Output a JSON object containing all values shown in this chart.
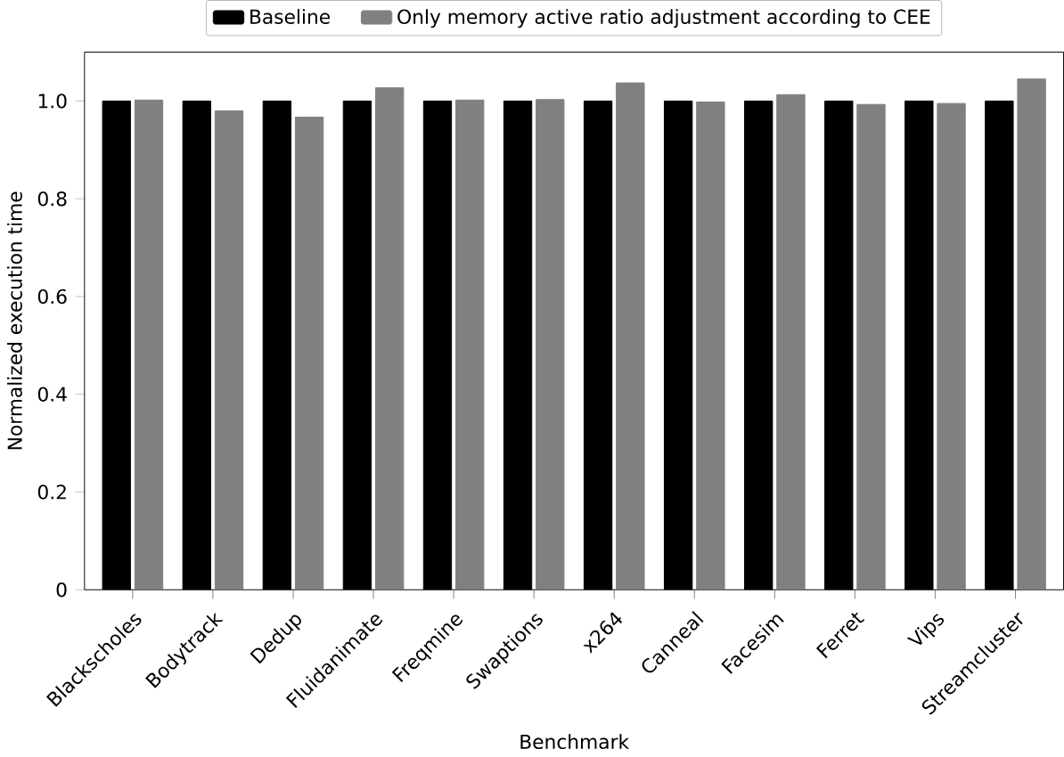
{
  "chart_data": {
    "type": "bar",
    "xlabel": "Benchmark",
    "ylabel": "Normalized execution time",
    "categories": [
      "Blackscholes",
      "Bodytrack",
      "Dedup",
      "Fluidanimate",
      "Freqmine",
      "Swaptions",
      "x264",
      "Canneal",
      "Facesim",
      "Ferret",
      "Vips",
      "Streamcluster"
    ],
    "series": [
      {
        "name": "Baseline",
        "color": "#000000",
        "values": [
          1,
          1,
          1,
          1,
          1,
          1,
          1,
          1,
          1,
          1,
          1,
          1
        ]
      },
      {
        "name": "Only memory active ratio adjustment according to CEE",
        "color": "#808080",
        "values": [
          1.002,
          0.98,
          0.967,
          1.027,
          1.002,
          1.003,
          1.037,
          0.998,
          1.013,
          0.993,
          0.995,
          1.045
        ]
      }
    ],
    "ylim": [
      0,
      1.1
    ],
    "yticks": [
      {
        "value": 0,
        "label": "0"
      },
      0.2,
      0.4,
      0.6,
      0.8,
      {
        "value": 1,
        "label": "1.0"
      }
    ],
    "legend": "top",
    "grid": false
  }
}
